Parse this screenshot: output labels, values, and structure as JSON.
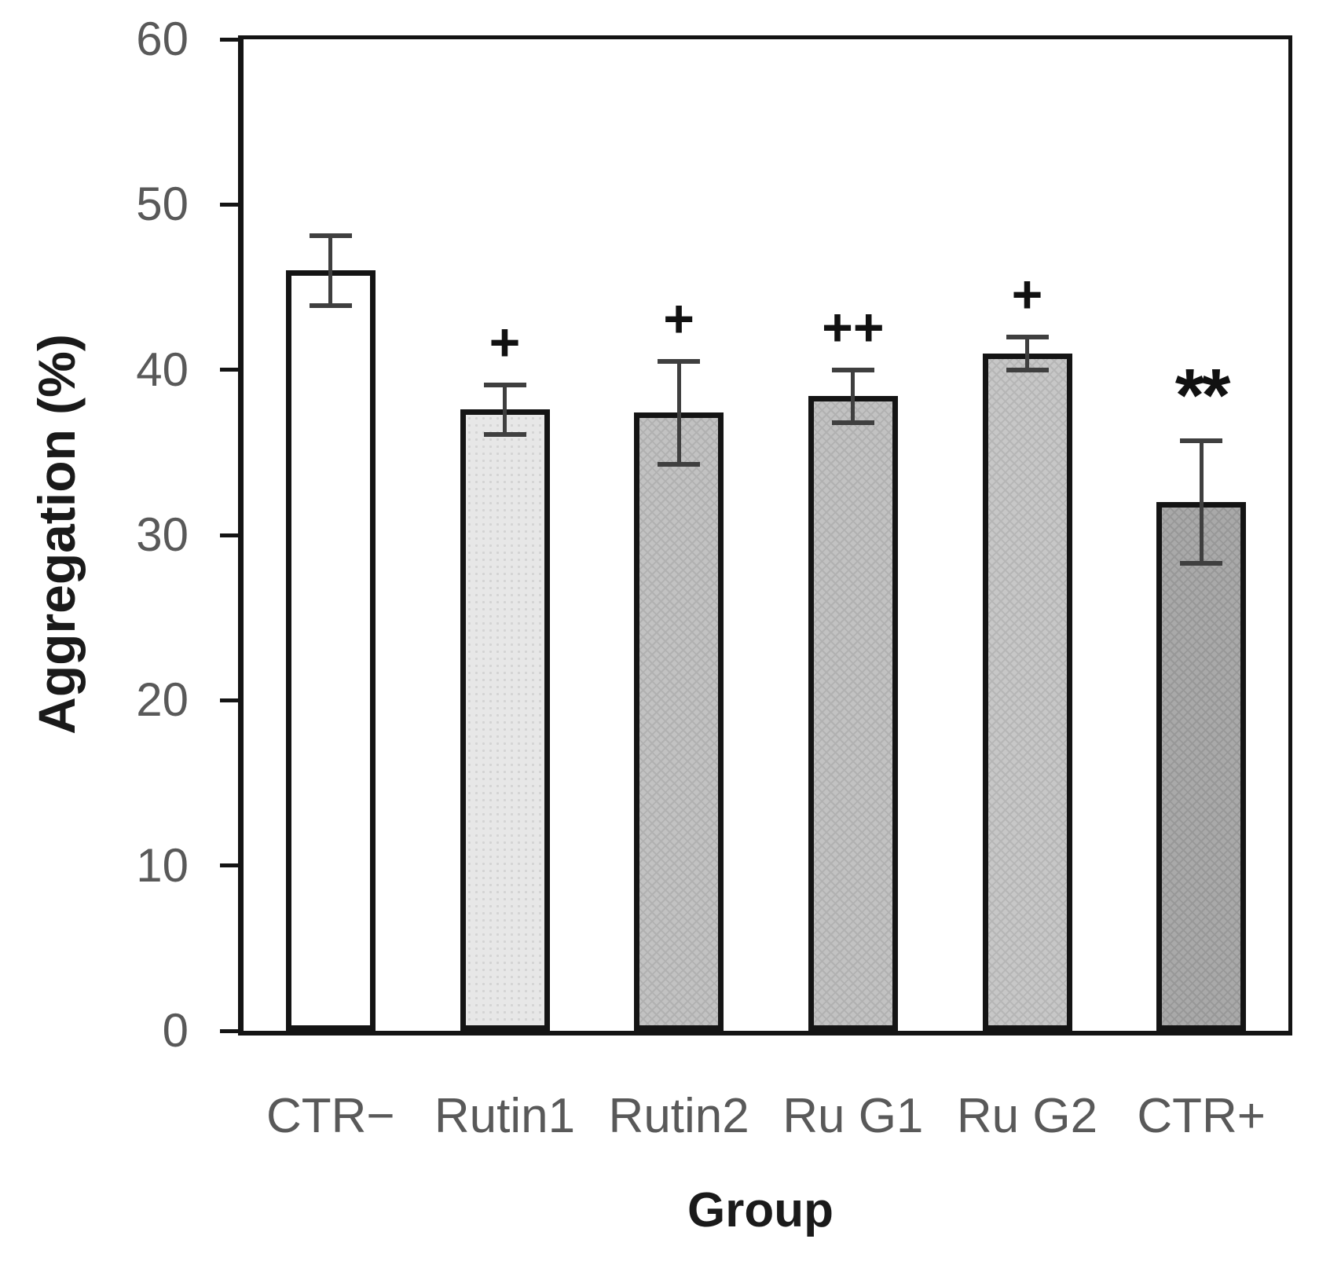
{
  "chart_data": {
    "type": "bar",
    "title": "",
    "xlabel": "Group",
    "ylabel": "Aggregation (%)",
    "ylim": [
      0,
      60
    ],
    "yticks": [
      0,
      10,
      20,
      30,
      40,
      50,
      60
    ],
    "grid": false,
    "legend": "none",
    "categories": [
      "CTR−",
      "Rutin1",
      "Rutin2",
      "Ru G1",
      "Ru G2",
      "CTR+"
    ],
    "series": [
      {
        "name": "Aggregation (%)",
        "values": [
          46.0,
          37.6,
          37.4,
          38.4,
          41.0,
          32.0
        ],
        "errors": [
          2.1,
          1.5,
          3.1,
          1.6,
          1.0,
          3.7
        ],
        "significance_labels": [
          "",
          "+",
          "+",
          "++",
          "+",
          "**"
        ]
      }
    ],
    "bar_styles": [
      {
        "fill": "#ffffff",
        "pattern": "none",
        "pattern_color": "#ffffff"
      },
      {
        "fill": "#e7e7e7",
        "pattern": "dots",
        "pattern_color": "#d3d3d3"
      },
      {
        "fill": "#c2c2c2",
        "pattern": "weave",
        "pattern_color": "#b1b1b1"
      },
      {
        "fill": "#c2c2c2",
        "pattern": "weave",
        "pattern_color": "#b1b1b1"
      },
      {
        "fill": "#c7c7c7",
        "pattern": "weave",
        "pattern_color": "#b6b6b6"
      },
      {
        "fill": "#a9a9a9",
        "pattern": "weave",
        "pattern_color": "#989898"
      }
    ],
    "colors": {
      "bar_border": "#141414",
      "axis_box": "#141414",
      "error_bar": "#3f3f3f",
      "tick_label": "#595959",
      "category_label": "#595959",
      "axis_title": "#1a1a1a",
      "annotation": "#111111"
    }
  }
}
